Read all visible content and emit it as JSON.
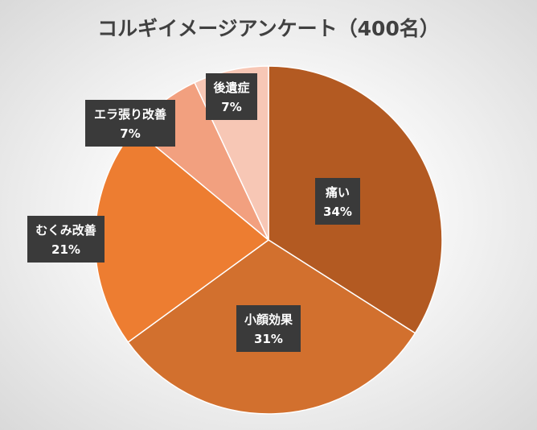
{
  "chart_data": {
    "type": "pie",
    "title": "コルギイメージアンケート（400名）",
    "categories": [
      "痛い",
      "小顔効果",
      "むくみ改善",
      "エラ張り改善",
      "後遺症"
    ],
    "values": [
      34,
      31,
      21,
      7,
      7
    ],
    "value_labels": [
      "34%",
      "31%",
      "21%",
      "7%",
      "7%"
    ],
    "colors": [
      "#B35A22",
      "#D2702E",
      "#ED7D31",
      "#F2A07F",
      "#F7C7B5"
    ]
  }
}
